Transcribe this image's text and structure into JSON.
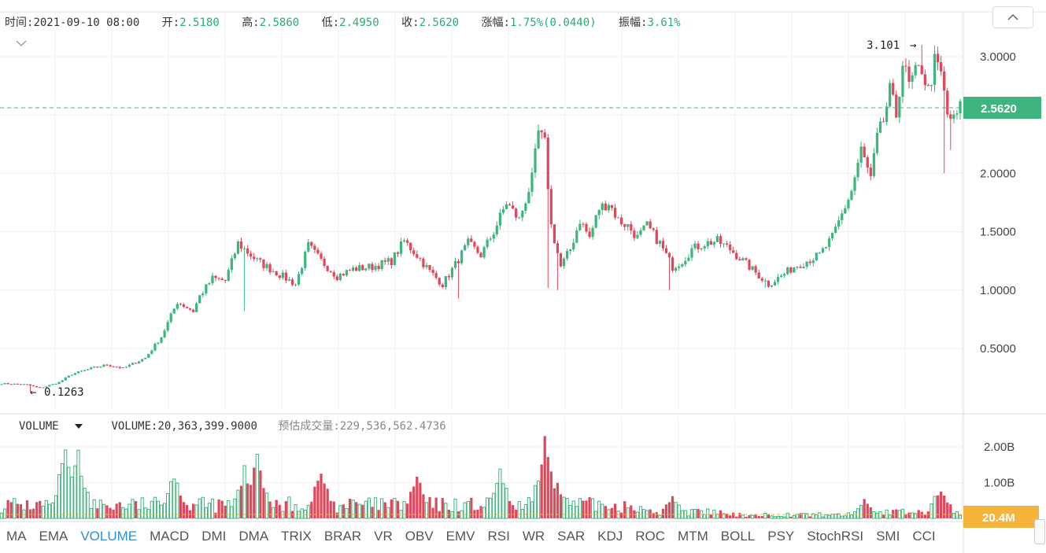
{
  "info_bar": {
    "time_label": "时间:",
    "time_value": "2021-09-10 08:00",
    "open_label": "开:",
    "open_value": "2.5180",
    "high_label": "高:",
    "high_value": "2.5860",
    "low_label": "低:",
    "low_value": "2.4950",
    "close_label": "收:",
    "close_value": "2.5620",
    "change_label": "涨幅:",
    "change_value": "1.75%(0.0440)",
    "amplitude_label": "振幅:",
    "amplitude_value": "3.61%"
  },
  "volume_row": {
    "indicator": "VOLUME",
    "volume_text": "VOLUME:20,363,399.9000",
    "estimate_label": "预估成交量:",
    "estimate_value": "229,536,562.4736"
  },
  "tabs": [
    "MA",
    "EMA",
    "VOLUME",
    "MACD",
    "DMI",
    "DMA",
    "TRIX",
    "BRAR",
    "VR",
    "OBV",
    "EMV",
    "RSI",
    "WR",
    "SAR",
    "KDJ",
    "ROC",
    "MTM",
    "BOLL",
    "PSY",
    "StochRSI",
    "SMI",
    "CCI"
  ],
  "active_tab": "VOLUME",
  "colors": {
    "up": "#3eb57f",
    "down": "#e0475a",
    "accent": "#2e8ed8",
    "volume_tag": "#f5b43c",
    "price_tag": "#3eb57f"
  },
  "chart_data": [
    {
      "type": "candlestick",
      "price_ticks": [
        "3.0000",
        "2.5000",
        "2.0000",
        "1.5000",
        "1.0000",
        "0.5000"
      ],
      "ylim": [
        0,
        3.15
      ],
      "current_price": "2.5620",
      "max_marker": "3.101",
      "min_marker": "0.1263",
      "anchors": [
        [
          0,
          0.2
        ],
        [
          8,
          0.19
        ],
        [
          12,
          0.16
        ],
        [
          18,
          0.21
        ],
        [
          22,
          0.28
        ],
        [
          28,
          0.33
        ],
        [
          33,
          0.36
        ],
        [
          38,
          0.33
        ],
        [
          45,
          0.42
        ],
        [
          50,
          0.6
        ],
        [
          55,
          0.9
        ],
        [
          60,
          0.82
        ],
        [
          62,
          0.95
        ],
        [
          66,
          1.1
        ],
        [
          70,
          1.08
        ],
        [
          74,
          1.4
        ],
        [
          80,
          1.25
        ],
        [
          86,
          1.15
        ],
        [
          92,
          1.05
        ],
        [
          96,
          1.38
        ],
        [
          100,
          1.25
        ],
        [
          105,
          1.12
        ],
        [
          110,
          1.18
        ],
        [
          116,
          1.2
        ],
        [
          122,
          1.25
        ],
        [
          126,
          1.42
        ],
        [
          130,
          1.3
        ],
        [
          134,
          1.16
        ],
        [
          138,
          1.05
        ],
        [
          142,
          1.22
        ],
        [
          146,
          1.4
        ],
        [
          150,
          1.3
        ],
        [
          154,
          1.5
        ],
        [
          158,
          1.75
        ],
        [
          162,
          1.6
        ],
        [
          166,
          1.95
        ],
        [
          168,
          2.35
        ],
        [
          170,
          2.25
        ],
        [
          172,
          1.55
        ],
        [
          175,
          1.2
        ],
        [
          178,
          1.35
        ],
        [
          181,
          1.6
        ],
        [
          184,
          1.45
        ],
        [
          187,
          1.7
        ],
        [
          190,
          1.75
        ],
        [
          193,
          1.6
        ],
        [
          196,
          1.55
        ],
        [
          199,
          1.45
        ],
        [
          202,
          1.55
        ],
        [
          206,
          1.4
        ],
        [
          210,
          1.2
        ],
        [
          213,
          1.25
        ],
        [
          216,
          1.35
        ],
        [
          220,
          1.4
        ],
        [
          224,
          1.42
        ],
        [
          228,
          1.35
        ],
        [
          232,
          1.25
        ],
        [
          236,
          1.15
        ],
        [
          240,
          1.05
        ],
        [
          244,
          1.12
        ],
        [
          248,
          1.2
        ],
        [
          252,
          1.25
        ],
        [
          256,
          1.3
        ],
        [
          260,
          1.45
        ],
        [
          263,
          1.65
        ],
        [
          266,
          1.85
        ],
        [
          269,
          2.2
        ],
        [
          272,
          1.95
        ],
        [
          274,
          2.3
        ],
        [
          276,
          2.45
        ],
        [
          278,
          2.7
        ],
        [
          280,
          2.5
        ],
        [
          282,
          2.95
        ],
        [
          284,
          2.75
        ],
        [
          286,
          2.85
        ],
        [
          288,
          2.9
        ],
        [
          290,
          2.7
        ],
        [
          292,
          2.95
        ],
        [
          294,
          2.85
        ],
        [
          296,
          2.5
        ],
        [
          298,
          2.45
        ],
        [
          300,
          2.56
        ]
      ],
      "spikes": [
        {
          "i": 168,
          "high": 2.42
        },
        {
          "i": 171,
          "low": 1.02
        },
        {
          "i": 174,
          "low": 1.0
        },
        {
          "i": 209,
          "low": 1.0
        },
        {
          "i": 239,
          "low": 1.02
        },
        {
          "i": 288,
          "high": 3.101
        },
        {
          "i": 295,
          "low": 2.0
        },
        {
          "i": 297,
          "low": 2.2
        },
        {
          "i": 9,
          "low": 0.1263
        },
        {
          "i": 143,
          "low": 0.93
        },
        {
          "i": 76,
          "low": 0.82
        }
      ]
    },
    {
      "type": "volume",
      "ticks": [
        "2.00B",
        "1.00B"
      ],
      "ylim": [
        0,
        2.3
      ],
      "current_volume": "20.4M",
      "peak_indices": {
        "20": 2.1,
        "24": 1.95,
        "54": 1.5,
        "80": 2.0,
        "76": 1.5,
        "100": 1.5,
        "130": 1.3,
        "156": 1.4,
        "170": 2.3,
        "174": 1.2,
        "210": 0.75,
        "270": 0.6,
        "294": 1.05
      }
    }
  ]
}
